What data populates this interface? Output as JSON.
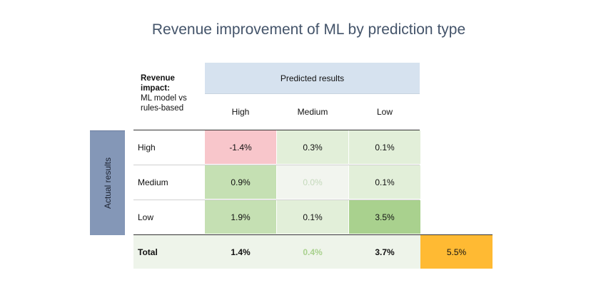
{
  "title": "Revenue improvement of ML by prediction type",
  "corner": {
    "line1": "Revenue impact:",
    "line2": "ML model vs rules-based"
  },
  "predicted_header": "Predicted results",
  "actual_label": "Actual results",
  "columns": [
    "High",
    "Medium",
    "Low"
  ],
  "rows": [
    {
      "label": "High",
      "cells": [
        "-1.4%",
        "0.3%",
        "0.1%"
      ]
    },
    {
      "label": "Medium",
      "cells": [
        "0.9%",
        "0.0%",
        "0.1%"
      ]
    },
    {
      "label": "Low",
      "cells": [
        "1.9%",
        "0.1%",
        "3.5%"
      ]
    }
  ],
  "total": {
    "label": "Total",
    "cells": [
      "1.4%",
      "0.4%",
      "3.7%"
    ],
    "grand": "5.5%"
  },
  "colors": {
    "negative": "#f8c6cb",
    "strong_green": "#a9d18e",
    "mid_green": "#c5e0b3",
    "light_green": "#e2efd9",
    "pale": "#f2f5ef",
    "total_row": "#eef4ea",
    "grand_total": "#ffba33",
    "faded_text": "#a9d18e"
  },
  "chart_data": {
    "type": "heatmap",
    "title": "Revenue improvement of ML by prediction type",
    "xlabel": "Predicted results",
    "ylabel": "Actual results",
    "x_categories": [
      "High",
      "Medium",
      "Low"
    ],
    "y_categories": [
      "High",
      "Medium",
      "Low"
    ],
    "values": [
      [
        -1.4,
        0.3,
        0.1
      ],
      [
        0.9,
        0.0,
        0.1
      ],
      [
        1.9,
        0.1,
        3.5
      ]
    ],
    "unit": "%",
    "column_totals": [
      1.4,
      0.4,
      3.7
    ],
    "grand_total": 5.5
  }
}
